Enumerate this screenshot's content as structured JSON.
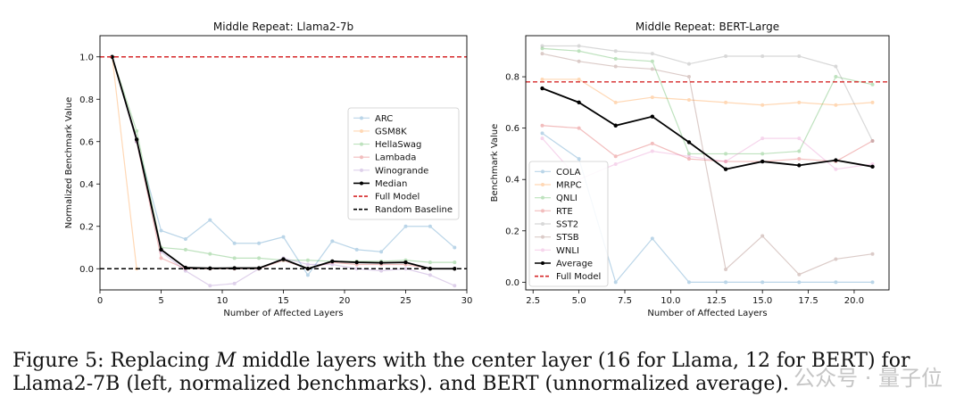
{
  "chart_data": [
    {
      "type": "line",
      "title": "Middle Repeat: Llama2-7b",
      "xlabel": "Number of Affected Layers",
      "ylabel": "Normalized Benchmark Value",
      "xlim": [
        0,
        30
      ],
      "ylim": [
        -0.1,
        1.1
      ],
      "xticks": [
        0,
        5,
        10,
        15,
        20,
        25,
        30
      ],
      "yticks": [
        0.0,
        0.2,
        0.4,
        0.6,
        0.8,
        1.0
      ],
      "xtick_labels": [
        "0",
        "5",
        "10",
        "15",
        "20",
        "25",
        "30"
      ],
      "ytick_labels": [
        "0.0",
        "0.2",
        "0.4",
        "0.6",
        "0.8",
        "1.0"
      ],
      "legend_position": "center-right",
      "series": [
        {
          "name": "ARC",
          "color": "#1f77b4",
          "faded": true,
          "x": [
            1,
            3,
            5,
            7,
            9,
            11,
            13,
            15,
            17,
            19,
            21,
            23,
            25,
            27,
            29
          ],
          "y": [
            1.0,
            0.6,
            0.18,
            0.14,
            0.23,
            0.12,
            0.12,
            0.15,
            -0.03,
            0.13,
            0.09,
            0.08,
            0.2,
            0.2,
            0.1
          ]
        },
        {
          "name": "GSM8K",
          "color": "#ff7f0e",
          "faded": true,
          "x": [
            1,
            3
          ],
          "y": [
            1.0,
            0.0
          ]
        },
        {
          "name": "HellaSwag",
          "color": "#2ca02c",
          "faded": true,
          "x": [
            1,
            3,
            5,
            7,
            9,
            11,
            13,
            15,
            17,
            19,
            21,
            23,
            25,
            27,
            29
          ],
          "y": [
            1.0,
            0.65,
            0.1,
            0.09,
            0.07,
            0.05,
            0.05,
            0.04,
            0.04,
            0.035,
            0.035,
            0.035,
            0.04,
            0.03,
            0.03
          ]
        },
        {
          "name": "Lambada",
          "color": "#d62728",
          "faded": true,
          "x": [
            1,
            3,
            5,
            7,
            9,
            11,
            13,
            15,
            17,
            19,
            21,
            23,
            25,
            27,
            29
          ],
          "y": [
            1.0,
            0.6,
            0.05,
            0.0,
            0.0,
            0.0,
            0.0,
            0.04,
            0.0,
            0.03,
            0.02,
            0.02,
            0.02,
            0.0,
            0.0
          ]
        },
        {
          "name": "Winogrande",
          "color": "#9467bd",
          "faded": true,
          "x": [
            1,
            3,
            5,
            7,
            9,
            11,
            13,
            15,
            17,
            19,
            21,
            23,
            25,
            27,
            29
          ],
          "y": [
            1.0,
            0.6,
            0.08,
            -0.01,
            -0.08,
            -0.07,
            0.0,
            0.05,
            0.02,
            0.02,
            0.0,
            -0.01,
            0.0,
            -0.03,
            -0.08
          ]
        },
        {
          "name": "Median",
          "color": "#000000",
          "faded": false,
          "x": [
            1,
            3,
            5,
            7,
            9,
            11,
            13,
            15,
            17,
            19,
            21,
            23,
            25,
            27,
            29
          ],
          "y": [
            1.0,
            0.61,
            0.09,
            0.005,
            0.002,
            0.003,
            0.003,
            0.045,
            0.0,
            0.035,
            0.03,
            0.028,
            0.03,
            0.0,
            0.0
          ]
        }
      ],
      "reference_lines": [
        {
          "name": "Full Model",
          "y": 1.0,
          "color": "#d62728"
        },
        {
          "name": "Random Baseline",
          "y": 0.0,
          "color": "#000000"
        }
      ]
    },
    {
      "type": "line",
      "title": "Middle Repeat: BERT-Large",
      "xlabel": "Number of Affected Layers",
      "ylabel": "Benchmark Value",
      "xlim": [
        2.1,
        21.9
      ],
      "ylim": [
        -0.03,
        0.96
      ],
      "xticks": [
        2.5,
        5.0,
        7.5,
        10.0,
        12.5,
        15.0,
        17.5,
        20.0
      ],
      "yticks": [
        0.0,
        0.2,
        0.4,
        0.6,
        0.8
      ],
      "xtick_labels": [
        "2.5",
        "5.0",
        "7.5",
        "10.0",
        "12.5",
        "15.0",
        "17.5",
        "20.0"
      ],
      "ytick_labels": [
        "0.0",
        "0.2",
        "0.4",
        "0.6",
        "0.8"
      ],
      "legend_position": "lower-left",
      "series": [
        {
          "name": "COLA",
          "color": "#1f77b4",
          "faded": true,
          "x": [
            3,
            5,
            7,
            9,
            11,
            13,
            15,
            17,
            19,
            21
          ],
          "y": [
            0.58,
            0.48,
            0.0,
            0.17,
            0.0,
            0.0,
            0.0,
            0.0,
            0.0,
            0.0
          ]
        },
        {
          "name": "MRPC",
          "color": "#ff7f0e",
          "faded": true,
          "x": [
            3,
            5,
            7,
            9,
            11,
            13,
            15,
            17,
            19,
            21
          ],
          "y": [
            0.79,
            0.79,
            0.7,
            0.72,
            0.71,
            0.7,
            0.69,
            0.7,
            0.69,
            0.7
          ]
        },
        {
          "name": "QNLI",
          "color": "#2ca02c",
          "faded": true,
          "x": [
            3,
            5,
            7,
            9,
            11,
            13,
            15,
            17,
            19,
            21
          ],
          "y": [
            0.91,
            0.9,
            0.87,
            0.86,
            0.5,
            0.5,
            0.5,
            0.51,
            0.8,
            0.77
          ]
        },
        {
          "name": "RTE",
          "color": "#d62728",
          "faded": true,
          "x": [
            3,
            5,
            7,
            9,
            11,
            13,
            15,
            17,
            19,
            21
          ],
          "y": [
            0.61,
            0.6,
            0.49,
            0.54,
            0.48,
            0.47,
            0.47,
            0.48,
            0.47,
            0.55
          ]
        },
        {
          "name": "SST2",
          "color": "#7f7f7f",
          "faded": true,
          "x": [
            3,
            5,
            7,
            9,
            11,
            13,
            15,
            17,
            19,
            21
          ],
          "y": [
            0.92,
            0.92,
            0.9,
            0.89,
            0.85,
            0.88,
            0.88,
            0.88,
            0.84,
            0.55
          ]
        },
        {
          "name": "STSB",
          "color": "#8c564b",
          "faded": true,
          "x": [
            3,
            5,
            7,
            9,
            11,
            13,
            15,
            17,
            19,
            21
          ],
          "y": [
            0.89,
            0.86,
            0.84,
            0.83,
            0.8,
            0.05,
            0.18,
            0.03,
            0.09,
            0.11
          ]
        },
        {
          "name": "WNLI",
          "color": "#e377c2",
          "faded": true,
          "x": [
            3,
            5,
            7,
            9,
            11,
            13,
            15,
            17,
            19,
            21
          ],
          "y": [
            0.56,
            0.4,
            0.46,
            0.51,
            0.49,
            0.47,
            0.56,
            0.56,
            0.44,
            0.46
          ]
        },
        {
          "name": "Average",
          "color": "#000000",
          "faded": false,
          "x": [
            3,
            5,
            7,
            9,
            11,
            13,
            15,
            17,
            19,
            21
          ],
          "y": [
            0.755,
            0.7,
            0.61,
            0.645,
            0.545,
            0.44,
            0.47,
            0.455,
            0.475,
            0.45
          ]
        }
      ],
      "reference_lines": [
        {
          "name": "Full Model",
          "y": 0.78,
          "color": "#d62728"
        }
      ]
    }
  ],
  "caption": {
    "prefix": "Figure 5: Replacing ",
    "italic": "M",
    "rest_line1": " middle layers with the center layer (16 for Llama, 12 for BERT) for",
    "line2": "Llama2-7B (left, normalized benchmarks). and BERT (unnormalized average)."
  },
  "watermark": "公众号 · 量子位"
}
